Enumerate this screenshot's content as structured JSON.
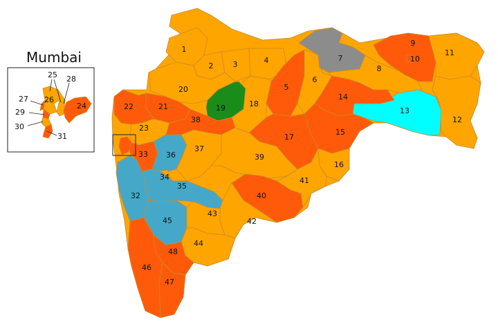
{
  "inset": {
    "title": "Mumbai"
  },
  "colors": {
    "orange": "#ffa500",
    "red_orange": "#ff5a0a",
    "green": "#1a8c1a",
    "cyan": "#00ffff",
    "blue": "#45a8c8",
    "gray": "#8c8c8c"
  },
  "constituencies": [
    {
      "id": "1",
      "label": "1",
      "color": "#ffa500"
    },
    {
      "id": "2",
      "label": "2",
      "color": "#ffa500"
    },
    {
      "id": "3",
      "label": "3",
      "color": "#ffa500"
    },
    {
      "id": "4",
      "label": "4",
      "color": "#ffa500"
    },
    {
      "id": "5",
      "label": "5",
      "color": "#ff5a0a"
    },
    {
      "id": "6",
      "label": "6",
      "color": "#ffa500"
    },
    {
      "id": "7",
      "label": "7",
      "color": "#8c8c8c"
    },
    {
      "id": "8",
      "label": "8",
      "color": "#ffa500"
    },
    {
      "id": "9",
      "label": "9",
      "color": "#ff5a0a"
    },
    {
      "id": "10",
      "label": "10",
      "color": "#ff5a0a"
    },
    {
      "id": "11",
      "label": "11",
      "color": "#ffa500"
    },
    {
      "id": "12",
      "label": "12",
      "color": "#ffa500"
    },
    {
      "id": "13",
      "label": "13",
      "color": "#00ffff"
    },
    {
      "id": "14",
      "label": "14",
      "color": "#ff5a0a"
    },
    {
      "id": "15",
      "label": "15",
      "color": "#ff5a0a"
    },
    {
      "id": "16",
      "label": "16",
      "color": "#ffa500"
    },
    {
      "id": "17",
      "label": "17",
      "color": "#ff5a0a"
    },
    {
      "id": "18",
      "label": "18",
      "color": "#ffa500"
    },
    {
      "id": "19",
      "label": "19",
      "color": "#1a8c1a"
    },
    {
      "id": "20",
      "label": "20",
      "color": "#ffa500"
    },
    {
      "id": "21",
      "label": "21",
      "color": "#ff5a0a"
    },
    {
      "id": "22",
      "label": "22",
      "color": "#ff5a0a"
    },
    {
      "id": "23",
      "label": "23",
      "color": "#ffa500"
    },
    {
      "id": "24",
      "label": "24",
      "color": "#ff5a0a"
    },
    {
      "id": "25",
      "label": "25",
      "color": "#ffa500"
    },
    {
      "id": "26",
      "label": "26",
      "color": "#ffa500"
    },
    {
      "id": "27",
      "label": "27",
      "color": "#ff5a0a"
    },
    {
      "id": "28",
      "label": "28",
      "color": "#ffa500"
    },
    {
      "id": "29",
      "label": "29",
      "color": "#ff5a0a"
    },
    {
      "id": "30",
      "label": "30",
      "color": "#ffa500"
    },
    {
      "id": "31",
      "label": "31",
      "color": "#ff5a0a"
    },
    {
      "id": "32",
      "label": "32",
      "color": "#45a8c8"
    },
    {
      "id": "33",
      "label": "33",
      "color": "#ff5a0a"
    },
    {
      "id": "34",
      "label": "34",
      "color": "#ffa500"
    },
    {
      "id": "35",
      "label": "35",
      "color": "#45a8c8"
    },
    {
      "id": "36",
      "label": "36",
      "color": "#45a8c8"
    },
    {
      "id": "37",
      "label": "37",
      "color": "#ffa500"
    },
    {
      "id": "38",
      "label": "38",
      "color": "#ff5a0a"
    },
    {
      "id": "39",
      "label": "39",
      "color": "#ffa500"
    },
    {
      "id": "40",
      "label": "40",
      "color": "#ff5a0a"
    },
    {
      "id": "41",
      "label": "41",
      "color": "#ffa500"
    },
    {
      "id": "42",
      "label": "42",
      "color": "#ffa500"
    },
    {
      "id": "43",
      "label": "43",
      "color": "#ffa500"
    },
    {
      "id": "44",
      "label": "44",
      "color": "#ffa500"
    },
    {
      "id": "45",
      "label": "45",
      "color": "#45a8c8"
    },
    {
      "id": "46",
      "label": "46",
      "color": "#ff5a0a"
    },
    {
      "id": "47",
      "label": "47",
      "color": "#ff5a0a"
    },
    {
      "id": "48",
      "label": "48",
      "color": "#ff5a0a"
    }
  ]
}
